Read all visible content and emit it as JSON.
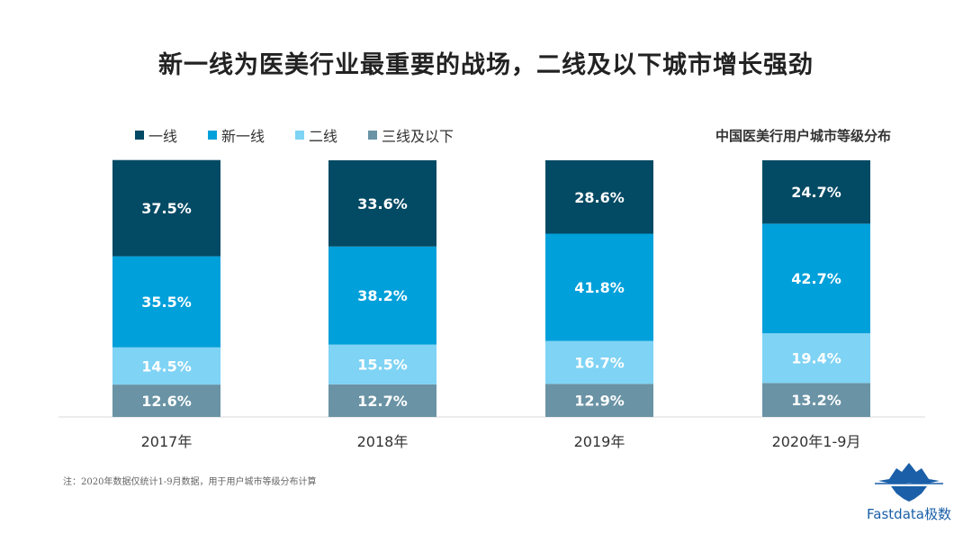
{
  "title": "新一线为医美行业最重要的战场，二线及以下城市增长强劲",
  "chart_subtitle": "中国医美行用户城市等级分布",
  "footnote": "注：2020年数据仅统计1-9月数据，用于用户城市等级分布计算",
  "logo_text": "Fastdata极数",
  "colors": {
    "tier1": "#034a64",
    "new_tier1": "#00a0da",
    "tier2": "#7fd3f4",
    "tier3_below": "#6a93a5",
    "axis": "#d9d9d9",
    "logo": "#1a5fa8"
  },
  "legend": [
    "一线",
    "新一线",
    "二线",
    "三线及以下"
  ],
  "chart_data": {
    "type": "bar",
    "stacked": true,
    "categories": [
      "2017年",
      "2018年",
      "2019年",
      "2020年1-9月"
    ],
    "series": [
      {
        "name": "三线及以下",
        "values": [
          12.6,
          12.7,
          12.9,
          13.2
        ],
        "labels": [
          "12.6%",
          "12.7%",
          "12.9%",
          "13.2%"
        ]
      },
      {
        "name": "二线",
        "values": [
          14.5,
          15.5,
          16.7,
          19.4
        ],
        "labels": [
          "14.5%",
          "15.5%",
          "16.7%",
          "19.4%"
        ]
      },
      {
        "name": "新一线",
        "values": [
          35.5,
          38.2,
          41.8,
          42.7
        ],
        "labels": [
          "35.5%",
          "38.2%",
          "41.8%",
          "42.7%"
        ]
      },
      {
        "name": "一线",
        "values": [
          37.5,
          33.6,
          28.6,
          24.7
        ],
        "labels": [
          "37.5%",
          "33.6%",
          "28.6%",
          "24.7%"
        ]
      }
    ],
    "ylim": [
      0,
      100
    ],
    "grid": false,
    "legend_position": "top-left"
  }
}
